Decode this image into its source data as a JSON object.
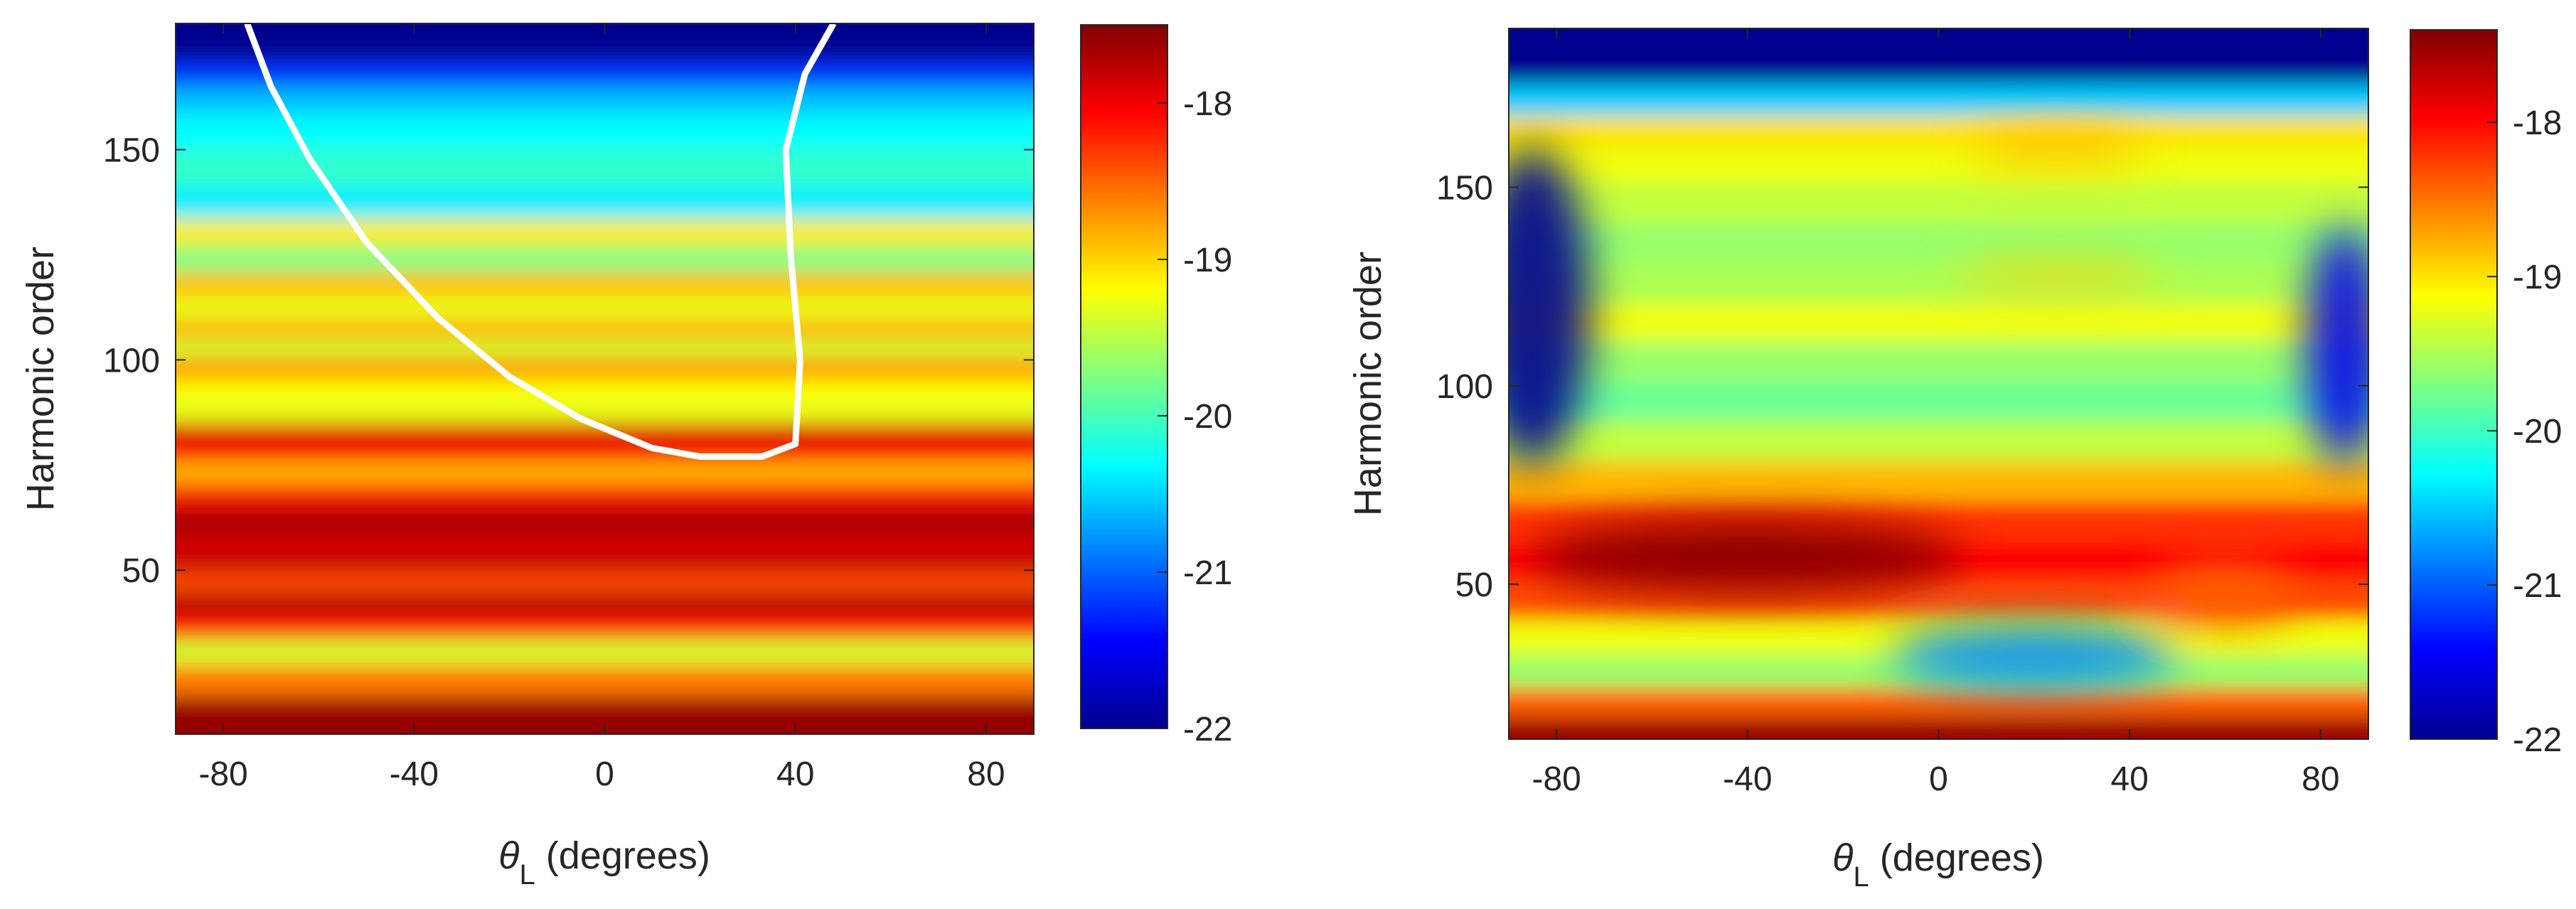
{
  "chart_data": [
    {
      "type": "heatmap",
      "panel": "left",
      "xlabel_symbol": "θ",
      "xlabel_sub": "L",
      "xlabel_text": " (degrees)",
      "ylabel": "Harmonic order",
      "xlim": [
        -90,
        90
      ],
      "ylim": [
        11,
        180
      ],
      "xticks": [
        -80,
        -40,
        0,
        40,
        80
      ],
      "yticks": [
        50,
        100,
        150
      ],
      "colorbar": {
        "min": -22,
        "max": -17.5,
        "ticks": [
          -18,
          -19,
          -20,
          -21,
          -22
        ]
      },
      "colormap": "jet",
      "bands": [
        {
          "y": 15,
          "value": -17.6
        },
        {
          "y": 25,
          "value": -18.6
        },
        {
          "y": 30,
          "value": -19.4
        },
        {
          "y": 37,
          "value": -18.2
        },
        {
          "y": 42,
          "value": -17.7
        },
        {
          "y": 47,
          "value": -18.4
        },
        {
          "y": 52,
          "value": -17.8
        },
        {
          "y": 57,
          "value": -17.9
        },
        {
          "y": 61,
          "value": -17.6
        },
        {
          "y": 65,
          "value": -17.9
        },
        {
          "y": 69,
          "value": -18.3
        },
        {
          "y": 73,
          "value": -18.9
        },
        {
          "y": 78,
          "value": -18.2
        },
        {
          "y": 82,
          "value": -17.9
        },
        {
          "y": 88,
          "value": -19.3
        },
        {
          "y": 93,
          "value": -19.2
        },
        {
          "y": 98,
          "value": -18.7
        },
        {
          "y": 103,
          "value": -19.4
        },
        {
          "y": 107,
          "value": -18.8
        },
        {
          "y": 112,
          "value": -19.3
        },
        {
          "y": 118,
          "value": -18.9
        },
        {
          "y": 124,
          "value": -19.8
        },
        {
          "y": 130,
          "value": -19.1
        },
        {
          "y": 137,
          "value": -20.4
        },
        {
          "y": 145,
          "value": -20.1
        },
        {
          "y": 155,
          "value": -20.3
        },
        {
          "y": 162,
          "value": -20.6
        },
        {
          "y": 168,
          "value": -21.2
        },
        {
          "y": 174,
          "value": -22
        },
        {
          "y": 180,
          "value": -22
        }
      ],
      "cutoff_curve": [
        {
          "x": -75,
          "y": 180
        },
        {
          "x": -70,
          "y": 165
        },
        {
          "x": -62,
          "y": 148
        },
        {
          "x": -50,
          "y": 128
        },
        {
          "x": -35,
          "y": 110
        },
        {
          "x": -20,
          "y": 96
        },
        {
          "x": -5,
          "y": 86
        },
        {
          "x": 10,
          "y": 79
        },
        {
          "x": 20,
          "y": 77
        },
        {
          "x": 33,
          "y": 77
        },
        {
          "x": 40,
          "y": 80
        },
        {
          "x": 41,
          "y": 100
        },
        {
          "x": 39,
          "y": 125
        },
        {
          "x": 38,
          "y": 150
        },
        {
          "x": 42,
          "y": 168
        },
        {
          "x": 48,
          "y": 180
        }
      ]
    },
    {
      "type": "heatmap",
      "panel": "right",
      "xlabel_symbol": "θ",
      "xlabel_sub": "L",
      "xlabel_text": " (degrees)",
      "ylabel": "Harmonic order",
      "xlim": [
        -90,
        90
      ],
      "ylim": [
        11,
        190
      ],
      "xticks": [
        -80,
        -40,
        0,
        40,
        80
      ],
      "yticks": [
        50,
        100,
        150
      ],
      "colorbar": {
        "min": -22,
        "max": -17.4,
        "ticks": [
          -18,
          -19,
          -20,
          -21,
          -22
        ]
      },
      "colormap": "jet",
      "bands": [
        {
          "y": 13,
          "value": -17.5
        },
        {
          "y": 20,
          "value": -18.4
        },
        {
          "y": 28,
          "value": -19.6
        },
        {
          "y": 36,
          "value": -19.2
        },
        {
          "y": 46,
          "value": -18.3
        },
        {
          "y": 56,
          "value": -18.0
        },
        {
          "y": 66,
          "value": -18.2
        },
        {
          "y": 76,
          "value": -18.8
        },
        {
          "y": 86,
          "value": -19.4
        },
        {
          "y": 96,
          "value": -19.8
        },
        {
          "y": 106,
          "value": -19.6
        },
        {
          "y": 116,
          "value": -19.2
        },
        {
          "y": 126,
          "value": -19.5
        },
        {
          "y": 136,
          "value": -19.6
        },
        {
          "y": 146,
          "value": -19.4
        },
        {
          "y": 156,
          "value": -19.2
        },
        {
          "y": 164,
          "value": -19.0
        },
        {
          "y": 172,
          "value": -20.5
        },
        {
          "y": 180,
          "value": -22
        },
        {
          "y": 190,
          "value": -22
        }
      ],
      "hotspots": [
        {
          "x": -40,
          "y": 57,
          "value": -17.4,
          "rx": 45,
          "ry": 9
        },
        {
          "x": 25,
          "y": 160,
          "value": -18.8,
          "rx": 18,
          "ry": 4
        },
        {
          "x": 25,
          "y": 128,
          "value": -18.9,
          "rx": 22,
          "ry": 3
        },
        {
          "x": 60,
          "y": 48,
          "value": -18.4,
          "rx": 15,
          "ry": 8
        }
      ],
      "lowspots": [
        {
          "x": -85,
          "y": 120,
          "value": -22,
          "rx": 12,
          "ry": 40
        },
        {
          "x": 85,
          "y": 110,
          "value": -21.5,
          "rx": 8,
          "ry": 30
        },
        {
          "x": 20,
          "y": 32,
          "value": -20.8,
          "rx": 30,
          "ry": 8
        }
      ]
    }
  ]
}
